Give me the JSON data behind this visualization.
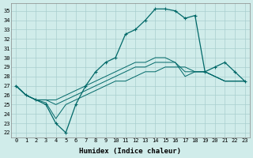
{
  "xlabel": "Humidex (Indice chaleur)",
  "xlim": [
    -0.5,
    23.5
  ],
  "ylim": [
    21.5,
    35.8
  ],
  "yticks": [
    22,
    23,
    24,
    25,
    26,
    27,
    28,
    29,
    30,
    31,
    32,
    33,
    34,
    35
  ],
  "xticks": [
    0,
    1,
    2,
    3,
    4,
    5,
    6,
    7,
    8,
    9,
    10,
    11,
    12,
    13,
    14,
    15,
    16,
    17,
    18,
    19,
    20,
    21,
    22,
    23
  ],
  "bg_color": "#d0ecea",
  "grid_color": "#a8cece",
  "line_color": "#006868",
  "line1_main": [
    27,
    26,
    25.5,
    25.0,
    23.0,
    22.0,
    25.0,
    27.0,
    28.5,
    29.5,
    30.0,
    32.5,
    33.0,
    34.0,
    35.2,
    35.2,
    35.0,
    34.2,
    34.5,
    28.5,
    29.0,
    29.5,
    28.5,
    27.5
  ],
  "line2": [
    27,
    26,
    25.5,
    25.2,
    23.5,
    25.0,
    25.5,
    26.0,
    26.5,
    27.0,
    27.5,
    27.5,
    28.0,
    28.5,
    28.5,
    29.0,
    29.0,
    29.0,
    28.5,
    28.5,
    28.0,
    27.5,
    27.5,
    27.5
  ],
  "line3": [
    27,
    26,
    25.5,
    25.5,
    25.0,
    25.5,
    26.0,
    26.5,
    27.0,
    27.5,
    28.0,
    28.5,
    29.0,
    29.0,
    29.5,
    29.5,
    29.5,
    28.5,
    28.5,
    28.5,
    28.0,
    27.5,
    27.5,
    27.5
  ],
  "line4": [
    27,
    26,
    25.5,
    25.5,
    25.5,
    26.0,
    26.5,
    27.0,
    27.5,
    28.0,
    28.5,
    29.0,
    29.5,
    29.5,
    30.0,
    30.0,
    29.5,
    28.0,
    28.5,
    28.5,
    28.0,
    27.5,
    27.5,
    27.5
  ]
}
